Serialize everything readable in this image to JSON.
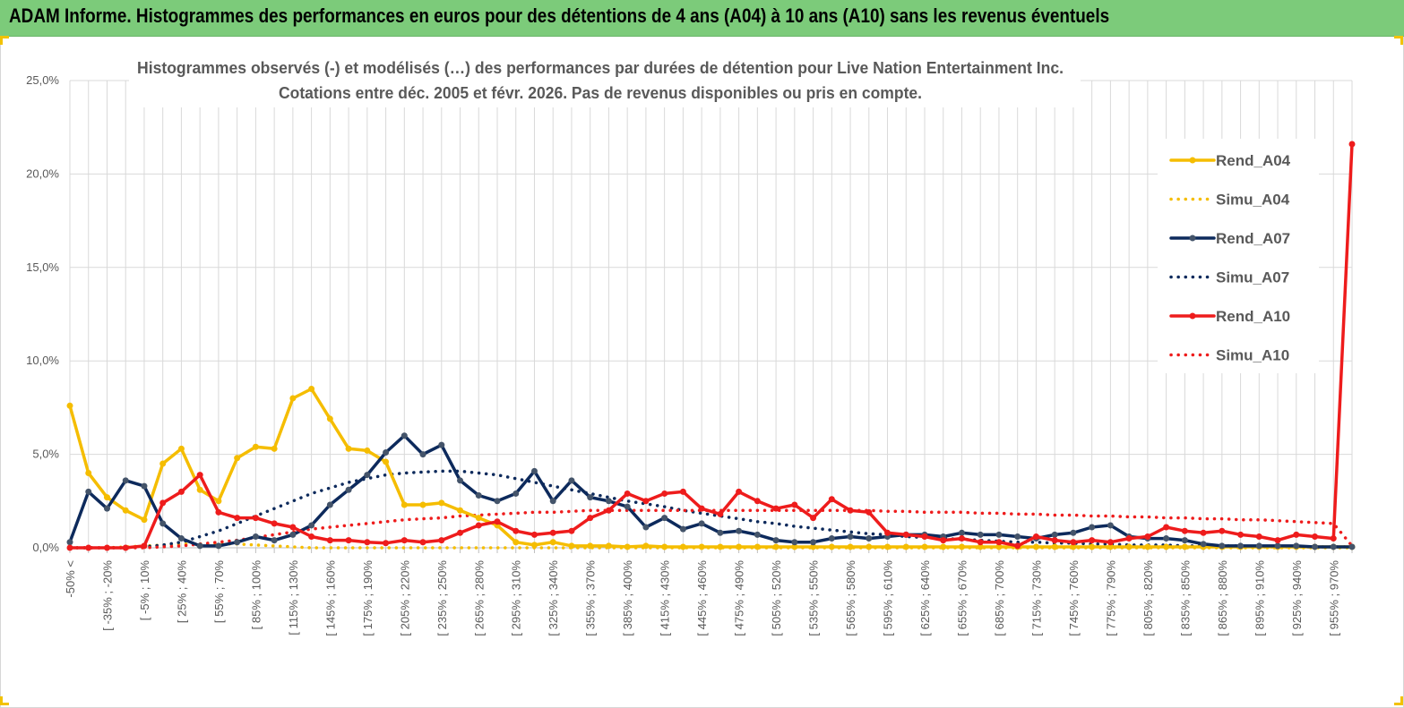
{
  "banner": {
    "title": "ADAM Informe. Histogrammes des performances en euros pour des détentions de 4 ans (A04) à 10 ans (A10) sans les revenus éventuels"
  },
  "colors": {
    "banner": "#7ccb7a",
    "a04": "#f5bd00",
    "a07": "#0d2a5c",
    "a10": "#ee1c1c",
    "grid": "#d9d9d9",
    "text": "#595959"
  },
  "chart_data": {
    "type": "line",
    "title_line1": "Histogrammes observés (-) et modélisés (…) des performances par durées de détention pour Live Nation Entertainment Inc.",
    "title_line2": "Cotations entre déc. 2005 et févr. 2026. Pas de revenus disponibles ou pris en compte.",
    "ylim": [
      0,
      25
    ],
    "yticks": [
      "0,0%",
      "5,0%",
      "10,0%",
      "15,0%",
      "20,0%",
      "25,0%"
    ],
    "tick_labels": [
      "-50% <",
      "[ -35% ; -20%",
      "[ -5% ; 10%",
      "[ 25% ; 40%",
      "[ 55% ; 70%",
      "[ 85% ; 100%",
      "[ 115% ; 130%",
      "[ 145% ; 160%",
      "[ 175% ; 190%",
      "[ 205% ; 220%",
      "[ 235% ; 250%",
      "[ 265% ; 280%",
      "[ 295% ; 310%",
      "[ 325% ; 340%",
      "[ 355% ; 370%",
      "[ 385% ; 400%",
      "[ 415% ; 430%",
      "[ 445% ; 460%",
      "[ 475% ; 490%",
      "[ 505% ; 520%",
      "[ 535% ; 550%",
      "[ 565% ; 580%",
      "[ 595% ; 610%",
      "[ 625% ; 640%",
      "[ 655% ; 670%",
      "[ 685% ; 700%",
      "[ 715% ; 730%",
      "[ 745% ; 760%",
      "[ 775% ; 790%",
      "[ 805% ; 820%",
      "[ 835% ; 850%",
      "[ 865% ; 880%",
      "[ 895% ; 910%",
      "[ 925% ; 940%",
      "[ 955% ; 970%"
    ],
    "tick_every": 2,
    "legend": [
      "Rend_A04",
      "Simu_A04",
      "Rend_A07",
      "Simu_A07",
      "Rend_A10",
      "Simu_A10"
    ],
    "legend_position": "right",
    "series": [
      {
        "name": "Rend_A04",
        "style": "solid",
        "color": "#f5bd00",
        "values": [
          7.6,
          4.0,
          2.7,
          2.0,
          1.5,
          4.5,
          5.3,
          3.1,
          2.5,
          4.8,
          5.4,
          5.3,
          8.0,
          8.5,
          6.9,
          5.3,
          5.2,
          4.6,
          2.3,
          2.3,
          2.4,
          2.0,
          1.6,
          1.2,
          0.3,
          0.15,
          0.3,
          0.1,
          0.1,
          0.1,
          0.05,
          0.1,
          0.05,
          0.05,
          0.05,
          0.05,
          0.05,
          0.05,
          0.05,
          0.05,
          0.05,
          0.05,
          0.05,
          0.05,
          0.05,
          0.05,
          0.05,
          0.05,
          0.05,
          0.05,
          0.05,
          0.05,
          0.05,
          0.05,
          0.05,
          0.05,
          0.05,
          0.05,
          0.05,
          0.05,
          0.05,
          0.05,
          0.05,
          0.05,
          0.05,
          0.05,
          0.05,
          0.05,
          0.05,
          0.05
        ]
      },
      {
        "name": "Simu_A04",
        "style": "dotted",
        "color": "#f5bd00",
        "values": [
          0.0,
          0.0,
          0.0,
          0.05,
          0.1,
          0.15,
          0.2,
          0.2,
          0.2,
          0.2,
          0.15,
          0.1,
          0.05,
          0.0,
          0.0,
          0.0,
          0.0,
          0.0,
          0.0,
          0.0,
          0.0,
          0.0,
          0.0,
          0.0,
          0.0,
          0.0,
          0.0,
          0.0,
          0.0,
          0.0,
          0.0,
          0.0,
          0.0,
          0.0,
          0.0,
          0.0,
          0.0,
          0.0,
          0.0,
          0.0,
          0.0,
          0.0,
          0.0,
          0.0,
          0.0,
          0.0,
          0.0,
          0.0,
          0.0,
          0.0,
          0.0,
          0.0,
          0.0,
          0.0,
          0.0,
          0.0,
          0.0,
          0.0,
          0.0,
          0.0,
          0.0,
          0.0,
          0.0,
          0.0,
          0.0,
          0.0,
          0.0,
          0.0,
          0.0,
          0.0
        ]
      },
      {
        "name": "Rend_A07",
        "style": "solid",
        "color": "#0d2a5c",
        "values": [
          0.3,
          3.0,
          2.1,
          3.6,
          3.3,
          1.3,
          0.5,
          0.1,
          0.1,
          0.3,
          0.6,
          0.4,
          0.7,
          1.2,
          2.3,
          3.1,
          3.9,
          5.1,
          6.0,
          5.0,
          5.5,
          3.6,
          2.8,
          2.5,
          2.9,
          4.1,
          2.5,
          3.6,
          2.7,
          2.5,
          2.2,
          1.1,
          1.6,
          1.0,
          1.3,
          0.8,
          0.9,
          0.7,
          0.4,
          0.3,
          0.3,
          0.5,
          0.6,
          0.5,
          0.6,
          0.7,
          0.7,
          0.6,
          0.8,
          0.7,
          0.7,
          0.6,
          0.5,
          0.7,
          0.8,
          1.1,
          1.2,
          0.6,
          0.5,
          0.5,
          0.4,
          0.2,
          0.1,
          0.1,
          0.1,
          0.1,
          0.1,
          0.05,
          0.05,
          0.05
        ]
      },
      {
        "name": "Simu_A07",
        "style": "dotted",
        "color": "#0d2a5c",
        "values": [
          0.0,
          0.0,
          0.0,
          0.0,
          0.05,
          0.15,
          0.3,
          0.6,
          0.9,
          1.3,
          1.7,
          2.1,
          2.5,
          2.9,
          3.2,
          3.5,
          3.7,
          3.9,
          4.0,
          4.05,
          4.1,
          4.1,
          4.0,
          3.9,
          3.7,
          3.5,
          3.3,
          3.1,
          2.9,
          2.7,
          2.5,
          2.35,
          2.2,
          2.0,
          1.85,
          1.7,
          1.55,
          1.4,
          1.3,
          1.15,
          1.05,
          0.95,
          0.85,
          0.75,
          0.7,
          0.6,
          0.55,
          0.5,
          0.45,
          0.4,
          0.35,
          0.3,
          0.3,
          0.25,
          0.25,
          0.2,
          0.2,
          0.15,
          0.15,
          0.15,
          0.1,
          0.1,
          0.1,
          0.1,
          0.05,
          0.05,
          0.05,
          0.05,
          0.05,
          0.05
        ]
      },
      {
        "name": "Rend_A10",
        "style": "solid",
        "color": "#ee1c1c",
        "values": [
          0.0,
          0.0,
          0.0,
          0.0,
          0.1,
          2.4,
          3.0,
          3.9,
          1.9,
          1.6,
          1.6,
          1.3,
          1.1,
          0.6,
          0.4,
          0.4,
          0.3,
          0.25,
          0.4,
          0.3,
          0.4,
          0.8,
          1.2,
          1.4,
          0.9,
          0.7,
          0.8,
          0.9,
          1.6,
          2.0,
          2.9,
          2.5,
          2.9,
          3.0,
          2.1,
          1.8,
          3.0,
          2.5,
          2.1,
          2.3,
          1.6,
          2.6,
          2.0,
          1.9,
          0.8,
          0.7,
          0.6,
          0.4,
          0.5,
          0.3,
          0.3,
          0.1,
          0.6,
          0.4,
          0.3,
          0.4,
          0.3,
          0.5,
          0.6,
          1.1,
          0.9,
          0.8,
          0.9,
          0.7,
          0.6,
          0.4,
          0.7,
          0.6,
          0.5,
          21.6
        ]
      },
      {
        "name": "Simu_A10",
        "style": "dotted",
        "color": "#ee1c1c",
        "values": [
          0.0,
          0.0,
          0.0,
          0.0,
          0.0,
          0.05,
          0.1,
          0.2,
          0.3,
          0.4,
          0.55,
          0.7,
          0.85,
          1.0,
          1.1,
          1.2,
          1.3,
          1.4,
          1.5,
          1.55,
          1.6,
          1.7,
          1.75,
          1.8,
          1.85,
          1.9,
          1.9,
          1.95,
          2.0,
          2.0,
          2.0,
          2.0,
          2.0,
          2.0,
          2.0,
          2.0,
          2.0,
          2.0,
          2.0,
          2.0,
          2.0,
          2.0,
          2.0,
          2.0,
          1.95,
          1.95,
          1.9,
          1.9,
          1.9,
          1.85,
          1.85,
          1.8,
          1.8,
          1.75,
          1.75,
          1.7,
          1.7,
          1.65,
          1.65,
          1.6,
          1.6,
          1.55,
          1.55,
          1.5,
          1.5,
          1.45,
          1.4,
          1.35,
          1.3,
          0.1
        ]
      }
    ]
  }
}
